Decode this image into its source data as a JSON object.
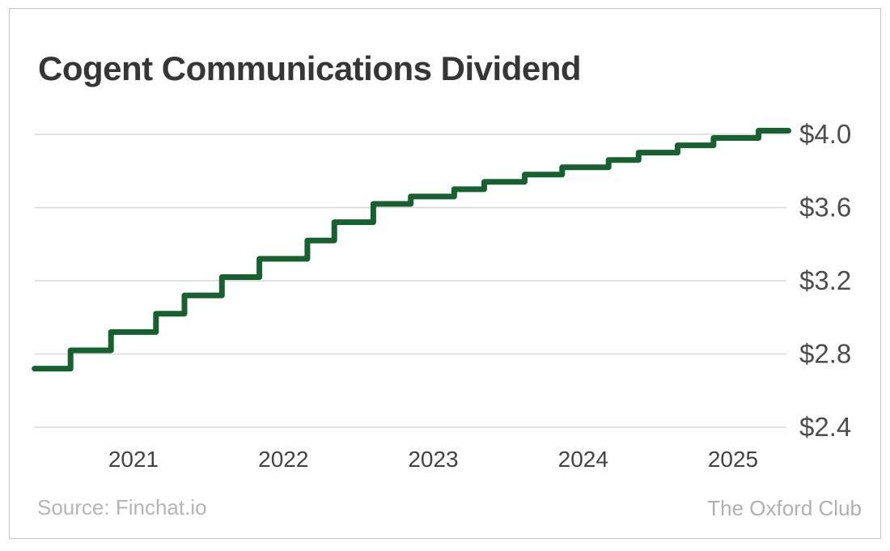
{
  "card": {
    "title": "Cogent Communications Dividend"
  },
  "footer": {
    "source": "Source: Finchat.io",
    "attribution": "The Oxford Club"
  },
  "colors": {
    "line": "#17602f",
    "grid": "#d7d7d7",
    "border": "#c5c5c5",
    "title_text": "#363636",
    "y_tick_text": "#4d4d4d",
    "x_tick_text": "#424242",
    "muted_text": "#b5b5b5"
  },
  "chart_data": {
    "type": "line",
    "line_style": "step-after",
    "title": "Cogent Communications Dividend",
    "x_unit": "year (fractional)",
    "y_unit": "USD per share (annualized dividend)",
    "grid": "horizontal",
    "legend": "none",
    "x_axis": {
      "ticks": [
        2021,
        2022,
        2023,
        2024,
        2025
      ],
      "tick_labels": [
        "2021",
        "2022",
        "2023",
        "2024",
        "2025"
      ],
      "range": [
        2020.22,
        2025.5
      ]
    },
    "y_axis": {
      "side": "right",
      "ticks": [
        2.4,
        2.8,
        3.2,
        3.6,
        4.0
      ],
      "tick_labels": [
        "$2.4",
        "$2.8",
        "$3.2",
        "$3.6",
        "$4.0"
      ],
      "range": [
        2.3,
        4.1
      ]
    },
    "series": [
      {
        "name": "Dividend",
        "color": "#17602f",
        "t_end": 2025.37,
        "points": [
          [
            2020.34,
            2.72
          ],
          [
            2020.58,
            2.82
          ],
          [
            2020.85,
            2.92
          ],
          [
            2021.15,
            3.02
          ],
          [
            2021.34,
            3.12
          ],
          [
            2021.59,
            3.22
          ],
          [
            2021.84,
            3.32
          ],
          [
            2022.16,
            3.42
          ],
          [
            2022.34,
            3.52
          ],
          [
            2022.6,
            3.62
          ],
          [
            2022.85,
            3.66
          ],
          [
            2023.14,
            3.7
          ],
          [
            2023.34,
            3.74
          ],
          [
            2023.61,
            3.78
          ],
          [
            2023.86,
            3.82
          ],
          [
            2024.17,
            3.86
          ],
          [
            2024.37,
            3.9
          ],
          [
            2024.63,
            3.94
          ],
          [
            2024.87,
            3.98
          ],
          [
            2025.17,
            4.02
          ]
        ]
      }
    ]
  }
}
